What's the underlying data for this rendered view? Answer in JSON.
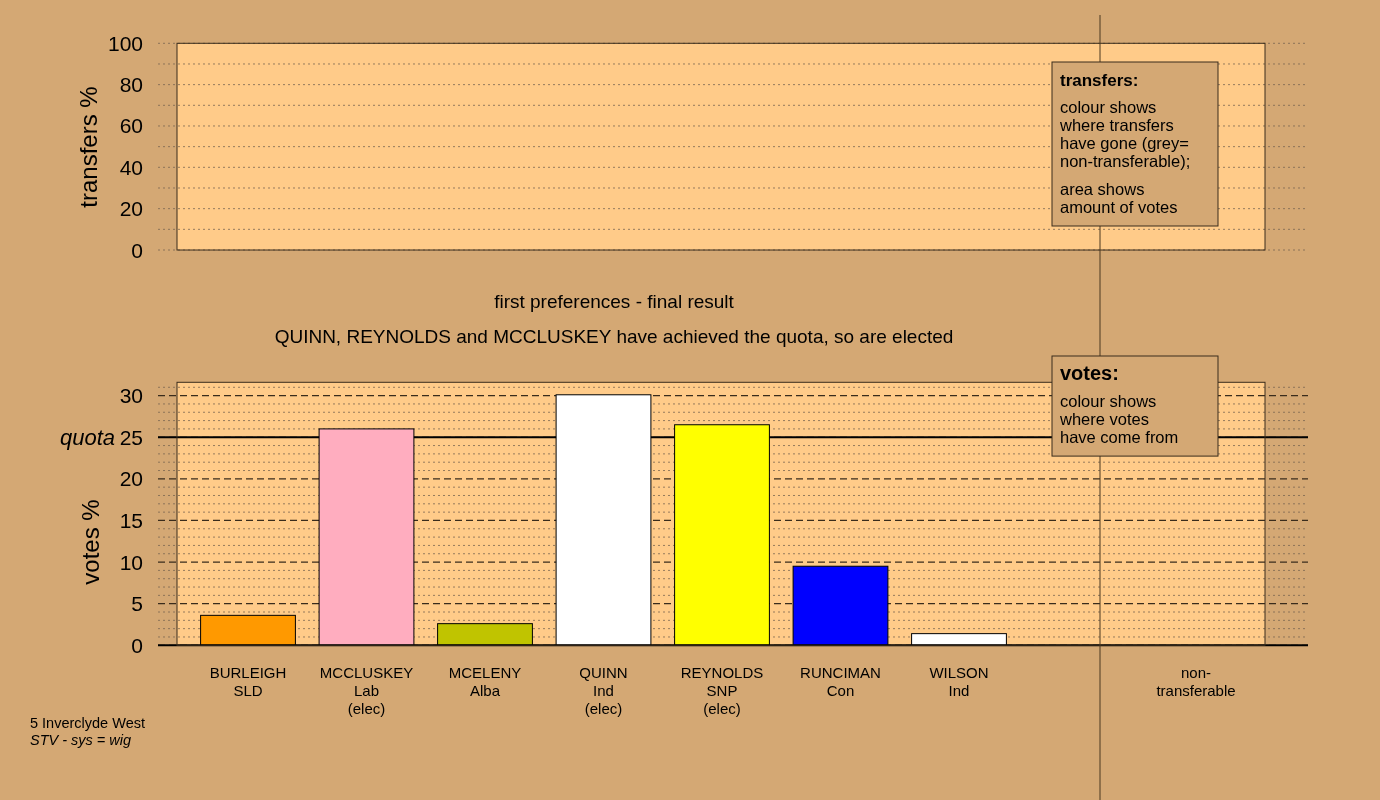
{
  "chart_data": [
    {
      "type": "bar",
      "ylabel": "transfers %",
      "categories": [
        null,
        null,
        null,
        null,
        null,
        null,
        null,
        null,
        null
      ],
      "values": [
        null,
        null,
        null,
        null,
        null,
        null,
        null,
        null,
        null
      ],
      "ylim": [
        0,
        100
      ],
      "yticks": [
        0,
        {
          "value": 10,
          "label": null
        },
        20,
        {
          "value": 30,
          "label": null
        },
        40,
        {
          "value": 50,
          "label": null
        },
        60,
        {
          "value": 70,
          "label": null
        },
        80,
        {
          "value": 90,
          "label": null
        },
        100
      ],
      "grid": "y",
      "tick_labels": "y",
      "annotations": [
        "transfers:",
        "colour shows\nwhere transfers\nhave gone (grey=\nnon-transferable);",
        "area shows\namount of votes"
      ]
    },
    {
      "type": "bar",
      "title": "first preferences - final result",
      "subtitle": "QUINN, REYNOLDS and MCCLUSKEY have achieved the quota, so are elected",
      "ylabel": "votes %",
      "categories": [
        "BURLEIGH\nSLD",
        "MCCLUSKEY\nLab\n(elec)",
        "MCELENY\nAlba",
        "QUINN\nInd\n(elec)",
        "REYNOLDS\nSNP\n(elec)",
        "RUNCIMAN\nCon",
        "WILSON\nInd",
        null,
        "non-\ntransferable"
      ],
      "values": [
        3.6,
        26.0,
        2.6,
        30.1,
        26.5,
        9.5,
        1.4,
        null,
        0
      ],
      "colors": [
        "#ff9900",
        "#ffadbf",
        "#c0c400",
        "#ffffff",
        "#ffff00",
        "#0000ff",
        "#ffffff",
        null,
        "#888888"
      ],
      "ylim": [
        0,
        31.6
      ],
      "yticks": [
        0,
        {
          "value": 1,
          "label": null
        },
        {
          "value": 2,
          "label": null
        },
        {
          "value": 3,
          "label": null
        },
        {
          "value": 4,
          "label": null
        },
        5,
        {
          "value": 6,
          "label": null
        },
        {
          "value": 7,
          "label": null
        },
        {
          "value": 8,
          "label": null
        },
        {
          "value": 9,
          "label": null
        },
        10,
        {
          "value": 11,
          "label": null
        },
        {
          "value": 12,
          "label": null
        },
        {
          "value": 13,
          "label": null
        },
        {
          "value": 14,
          "label": null
        },
        15,
        {
          "value": 16,
          "label": null
        },
        {
          "value": 17,
          "label": null
        },
        {
          "value": 18,
          "label": null
        },
        {
          "value": 19,
          "label": null
        },
        20,
        {
          "value": 21,
          "label": null
        },
        {
          "value": 22,
          "label": null
        },
        {
          "value": 23,
          "label": null
        },
        {
          "value": 24,
          "label": null
        },
        25,
        {
          "value": 26,
          "label": null
        },
        {
          "value": 27,
          "label": null
        },
        {
          "value": 28,
          "label": null
        },
        {
          "value": 29,
          "label": null
        },
        30,
        {
          "value": 31,
          "label": null
        }
      ],
      "grid": "y",
      "ref_lines": [
        {
          "axis": "y",
          "value": 25,
          "label": "quota"
        }
      ],
      "annotations": [
        "votes:",
        "colour shows\nwhere votes\nhave come from",
        "5 Inverclyde West",
        "STV - sys = wig"
      ]
    }
  ]
}
